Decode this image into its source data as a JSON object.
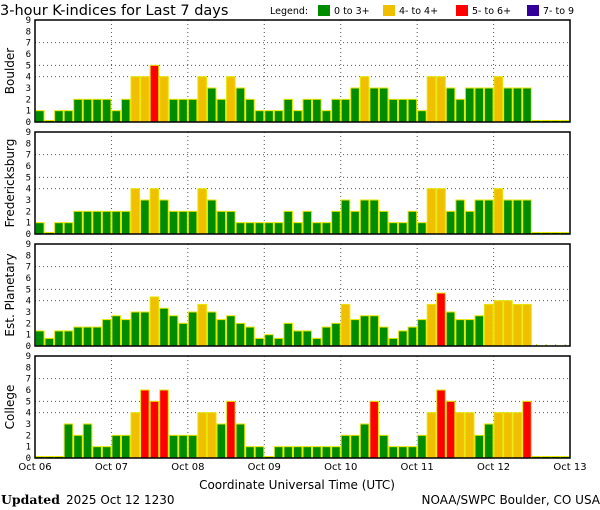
{
  "title": "3-hour K-indices for Last 7 days",
  "legend": {
    "label": "Legend:",
    "items": [
      {
        "label": "0 to 3+",
        "color": "#008c00"
      },
      {
        "label": "4- to 4+",
        "color": "#f0c000"
      },
      {
        "label": "5- to 6+",
        "color": "#ff0000"
      },
      {
        "label": "7- to 9",
        "color": "#330099"
      }
    ]
  },
  "footer": {
    "updated_label": "Updated",
    "updated_value": "2025 Oct 12 1230",
    "source": "NOAA/SWPC Boulder, CO USA"
  },
  "chart_data": {
    "type": "bar",
    "xlabel": "Coordinate Universal Time (UTC)",
    "x_ticks": [
      "Oct 06",
      "Oct 07",
      "Oct 08",
      "Oct 09",
      "Oct 10",
      "Oct 11",
      "Oct 12",
      "Oct 13"
    ],
    "y_ticks": [
      "0",
      "1",
      "2",
      "3",
      "4",
      "5",
      "6",
      "7",
      "8",
      "9"
    ],
    "ylim": [
      0,
      9
    ],
    "gridlines_y": [
      4,
      5,
      7
    ],
    "bins_per_day": 8,
    "panels": [
      {
        "name": "Boulder",
        "values": [
          1,
          0,
          1,
          1,
          2,
          2,
          2,
          2,
          1,
          2,
          4,
          4,
          5,
          4,
          2,
          2,
          2,
          4,
          3,
          2,
          4,
          3,
          2,
          1,
          1,
          1,
          2,
          1,
          2,
          2,
          1,
          2,
          2,
          3,
          4,
          3,
          3,
          2,
          2,
          2,
          1,
          4,
          4,
          3,
          2,
          3,
          3,
          3,
          4,
          3,
          3,
          3,
          0,
          0,
          0,
          0
        ]
      },
      {
        "name": "Fredericksburg",
        "values": [
          1,
          0,
          1,
          1,
          2,
          2,
          2,
          2,
          2,
          2,
          4,
          3,
          4,
          3,
          2,
          2,
          2,
          4,
          3,
          2,
          2,
          1,
          1,
          1,
          1,
          1,
          2,
          1,
          2,
          1,
          1,
          2,
          3,
          2,
          3,
          3,
          2,
          1,
          1,
          2,
          1,
          4,
          4,
          2,
          3,
          2,
          3,
          3,
          4,
          3,
          3,
          3,
          0,
          0,
          0,
          0
        ]
      },
      {
        "name": "Est. Planetary",
        "values": [
          1.33,
          0.67,
          1.33,
          1.33,
          1.67,
          1.67,
          1.67,
          2.33,
          2.67,
          2.33,
          3,
          3,
          4.33,
          3.33,
          2.67,
          2,
          3,
          3.67,
          3,
          2.33,
          2.67,
          2,
          1.67,
          0.67,
          1,
          0.67,
          2,
          1.33,
          1.33,
          0.67,
          1.67,
          2,
          3.67,
          2.33,
          2.67,
          2.67,
          1.67,
          0.67,
          1.33,
          1.67,
          2.33,
          3.67,
          4.67,
          3,
          2.33,
          2.33,
          2.67,
          3.67,
          4,
          4,
          3.67,
          3.67,
          null,
          null,
          null,
          null
        ]
      },
      {
        "name": "College",
        "values": [
          0,
          0,
          0,
          3,
          2,
          3,
          1,
          1,
          2,
          2,
          4,
          6,
          5,
          6,
          2,
          2,
          2,
          4,
          4,
          3,
          5,
          3,
          1,
          1,
          0,
          1,
          1,
          1,
          1,
          1,
          1,
          1,
          2,
          2,
          3,
          5,
          2,
          1,
          1,
          1,
          2,
          4,
          6,
          5,
          4,
          4,
          2,
          3,
          4,
          4,
          4,
          5,
          0,
          0,
          0,
          0
        ]
      }
    ]
  }
}
